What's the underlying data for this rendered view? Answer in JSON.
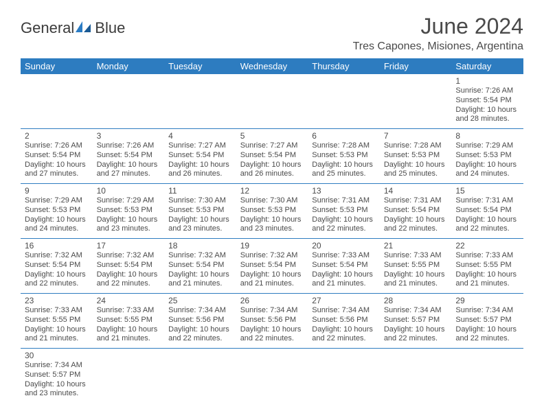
{
  "logo": {
    "text1": "General",
    "text2": "Blue"
  },
  "title": "June 2024",
  "location": "Tres Capones, Misiones, Argentina",
  "colors": {
    "header_bg": "#2d7cc0",
    "header_text": "#ffffff",
    "text": "#4a4a4a",
    "border": "#2d7cc0",
    "logo_blue": "#2b7cc4",
    "background": "#ffffff"
  },
  "typography": {
    "title_fontsize": 32,
    "location_fontsize": 16,
    "dayhead_fontsize": 13,
    "cell_fontsize": 11,
    "logo_fontsize": 22
  },
  "daynames": [
    "Sunday",
    "Monday",
    "Tuesday",
    "Wednesday",
    "Thursday",
    "Friday",
    "Saturday"
  ],
  "weeks": [
    [
      null,
      null,
      null,
      null,
      null,
      null,
      {
        "n": "1",
        "sr": "7:26 AM",
        "ss": "5:54 PM",
        "dl": "10 hours and 28 minutes."
      }
    ],
    [
      {
        "n": "2",
        "sr": "7:26 AM",
        "ss": "5:54 PM",
        "dl": "10 hours and 27 minutes."
      },
      {
        "n": "3",
        "sr": "7:26 AM",
        "ss": "5:54 PM",
        "dl": "10 hours and 27 minutes."
      },
      {
        "n": "4",
        "sr": "7:27 AM",
        "ss": "5:54 PM",
        "dl": "10 hours and 26 minutes."
      },
      {
        "n": "5",
        "sr": "7:27 AM",
        "ss": "5:54 PM",
        "dl": "10 hours and 26 minutes."
      },
      {
        "n": "6",
        "sr": "7:28 AM",
        "ss": "5:53 PM",
        "dl": "10 hours and 25 minutes."
      },
      {
        "n": "7",
        "sr": "7:28 AM",
        "ss": "5:53 PM",
        "dl": "10 hours and 25 minutes."
      },
      {
        "n": "8",
        "sr": "7:29 AM",
        "ss": "5:53 PM",
        "dl": "10 hours and 24 minutes."
      }
    ],
    [
      {
        "n": "9",
        "sr": "7:29 AM",
        "ss": "5:53 PM",
        "dl": "10 hours and 24 minutes."
      },
      {
        "n": "10",
        "sr": "7:29 AM",
        "ss": "5:53 PM",
        "dl": "10 hours and 23 minutes."
      },
      {
        "n": "11",
        "sr": "7:30 AM",
        "ss": "5:53 PM",
        "dl": "10 hours and 23 minutes."
      },
      {
        "n": "12",
        "sr": "7:30 AM",
        "ss": "5:53 PM",
        "dl": "10 hours and 23 minutes."
      },
      {
        "n": "13",
        "sr": "7:31 AM",
        "ss": "5:53 PM",
        "dl": "10 hours and 22 minutes."
      },
      {
        "n": "14",
        "sr": "7:31 AM",
        "ss": "5:54 PM",
        "dl": "10 hours and 22 minutes."
      },
      {
        "n": "15",
        "sr": "7:31 AM",
        "ss": "5:54 PM",
        "dl": "10 hours and 22 minutes."
      }
    ],
    [
      {
        "n": "16",
        "sr": "7:32 AM",
        "ss": "5:54 PM",
        "dl": "10 hours and 22 minutes."
      },
      {
        "n": "17",
        "sr": "7:32 AM",
        "ss": "5:54 PM",
        "dl": "10 hours and 22 minutes."
      },
      {
        "n": "18",
        "sr": "7:32 AM",
        "ss": "5:54 PM",
        "dl": "10 hours and 21 minutes."
      },
      {
        "n": "19",
        "sr": "7:32 AM",
        "ss": "5:54 PM",
        "dl": "10 hours and 21 minutes."
      },
      {
        "n": "20",
        "sr": "7:33 AM",
        "ss": "5:54 PM",
        "dl": "10 hours and 21 minutes."
      },
      {
        "n": "21",
        "sr": "7:33 AM",
        "ss": "5:55 PM",
        "dl": "10 hours and 21 minutes."
      },
      {
        "n": "22",
        "sr": "7:33 AM",
        "ss": "5:55 PM",
        "dl": "10 hours and 21 minutes."
      }
    ],
    [
      {
        "n": "23",
        "sr": "7:33 AM",
        "ss": "5:55 PM",
        "dl": "10 hours and 21 minutes."
      },
      {
        "n": "24",
        "sr": "7:33 AM",
        "ss": "5:55 PM",
        "dl": "10 hours and 21 minutes."
      },
      {
        "n": "25",
        "sr": "7:34 AM",
        "ss": "5:56 PM",
        "dl": "10 hours and 22 minutes."
      },
      {
        "n": "26",
        "sr": "7:34 AM",
        "ss": "5:56 PM",
        "dl": "10 hours and 22 minutes."
      },
      {
        "n": "27",
        "sr": "7:34 AM",
        "ss": "5:56 PM",
        "dl": "10 hours and 22 minutes."
      },
      {
        "n": "28",
        "sr": "7:34 AM",
        "ss": "5:57 PM",
        "dl": "10 hours and 22 minutes."
      },
      {
        "n": "29",
        "sr": "7:34 AM",
        "ss": "5:57 PM",
        "dl": "10 hours and 22 minutes."
      }
    ],
    [
      {
        "n": "30",
        "sr": "7:34 AM",
        "ss": "5:57 PM",
        "dl": "10 hours and 23 minutes."
      },
      null,
      null,
      null,
      null,
      null,
      null
    ]
  ],
  "labels": {
    "sunrise": "Sunrise:",
    "sunset": "Sunset:",
    "daylight": "Daylight:"
  }
}
